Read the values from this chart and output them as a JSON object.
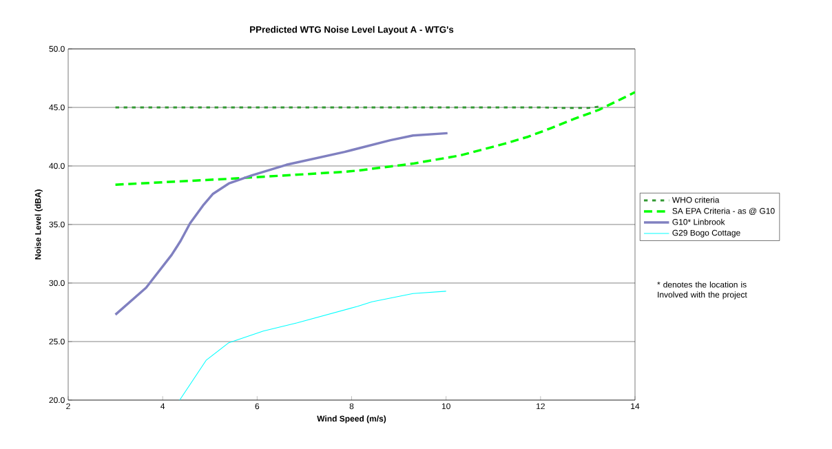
{
  "chart_data": {
    "type": "line",
    "title": "PPredicted WTG Noise Level  Layout A - WTG's",
    "xlabel": "Wind Speed (m/s)",
    "ylabel": "Noise Level (dBA)",
    "xlim": [
      2,
      14
    ],
    "xticks": [
      2,
      4,
      6,
      8,
      10,
      12,
      14
    ],
    "ylim": [
      20,
      50
    ],
    "yticks": [
      {
        "value": 20,
        "label": "20.0"
      },
      {
        "value": 25,
        "label": "25.0"
      },
      {
        "value": 30,
        "label": "30.0"
      },
      {
        "value": 35,
        "label": "35.0"
      },
      {
        "value": 40,
        "label": "40.0"
      },
      {
        "value": 45,
        "label": "45.0"
      },
      {
        "value": 50,
        "label": "50.0"
      }
    ],
    "grid": "y",
    "legend": "right",
    "marker": "none",
    "annotations": [
      "* denotes the location is Involved with the project"
    ],
    "series": [
      {
        "name": "WHO criteria",
        "color": "#339933",
        "line_style": "dotted",
        "x": [
          3,
          12,
          12.5,
          13,
          13.3
        ],
        "values": [
          45,
          45,
          44.95,
          44.95,
          45.1
        ]
      },
      {
        "name": "SA EPA  Criteria - as @ G10",
        "color": "#00ff00",
        "line_style": "dashed",
        "x": [
          3,
          5.4,
          7.85,
          8.12,
          9.3,
          10.3,
          11.24,
          11.74,
          12.2,
          12.7,
          13.24,
          13.75,
          14
        ],
        "values": [
          38.4,
          38.9,
          39.5,
          39.6,
          40.2,
          40.9,
          41.9,
          42.5,
          43.2,
          44.0,
          44.8,
          45.8,
          46.3
        ]
      },
      {
        "name": "G10* Linbrook",
        "color": "#8080c0",
        "line_style": "solid",
        "x": [
          3.0,
          3.65,
          4.19,
          4.38,
          4.58,
          4.87,
          5.06,
          5.4,
          5.89,
          6.62,
          7.85,
          8.82,
          9.3,
          10.03
        ],
        "values": [
          27.3,
          29.6,
          32.4,
          33.6,
          35.1,
          36.7,
          37.6,
          38.5,
          39.2,
          40.1,
          41.2,
          42.2,
          42.6,
          42.8
        ]
      },
      {
        "name": "G29 Bogo Cottage",
        "color": "#00ffff",
        "line_style": "solid",
        "x": [
          4.36,
          4.92,
          5.4,
          6.13,
          6.85,
          8.12,
          8.43,
          9.3,
          10.0
        ],
        "values": [
          20.0,
          23.4,
          24.9,
          25.9,
          26.6,
          28.0,
          28.4,
          29.1,
          29.3
        ]
      }
    ]
  }
}
